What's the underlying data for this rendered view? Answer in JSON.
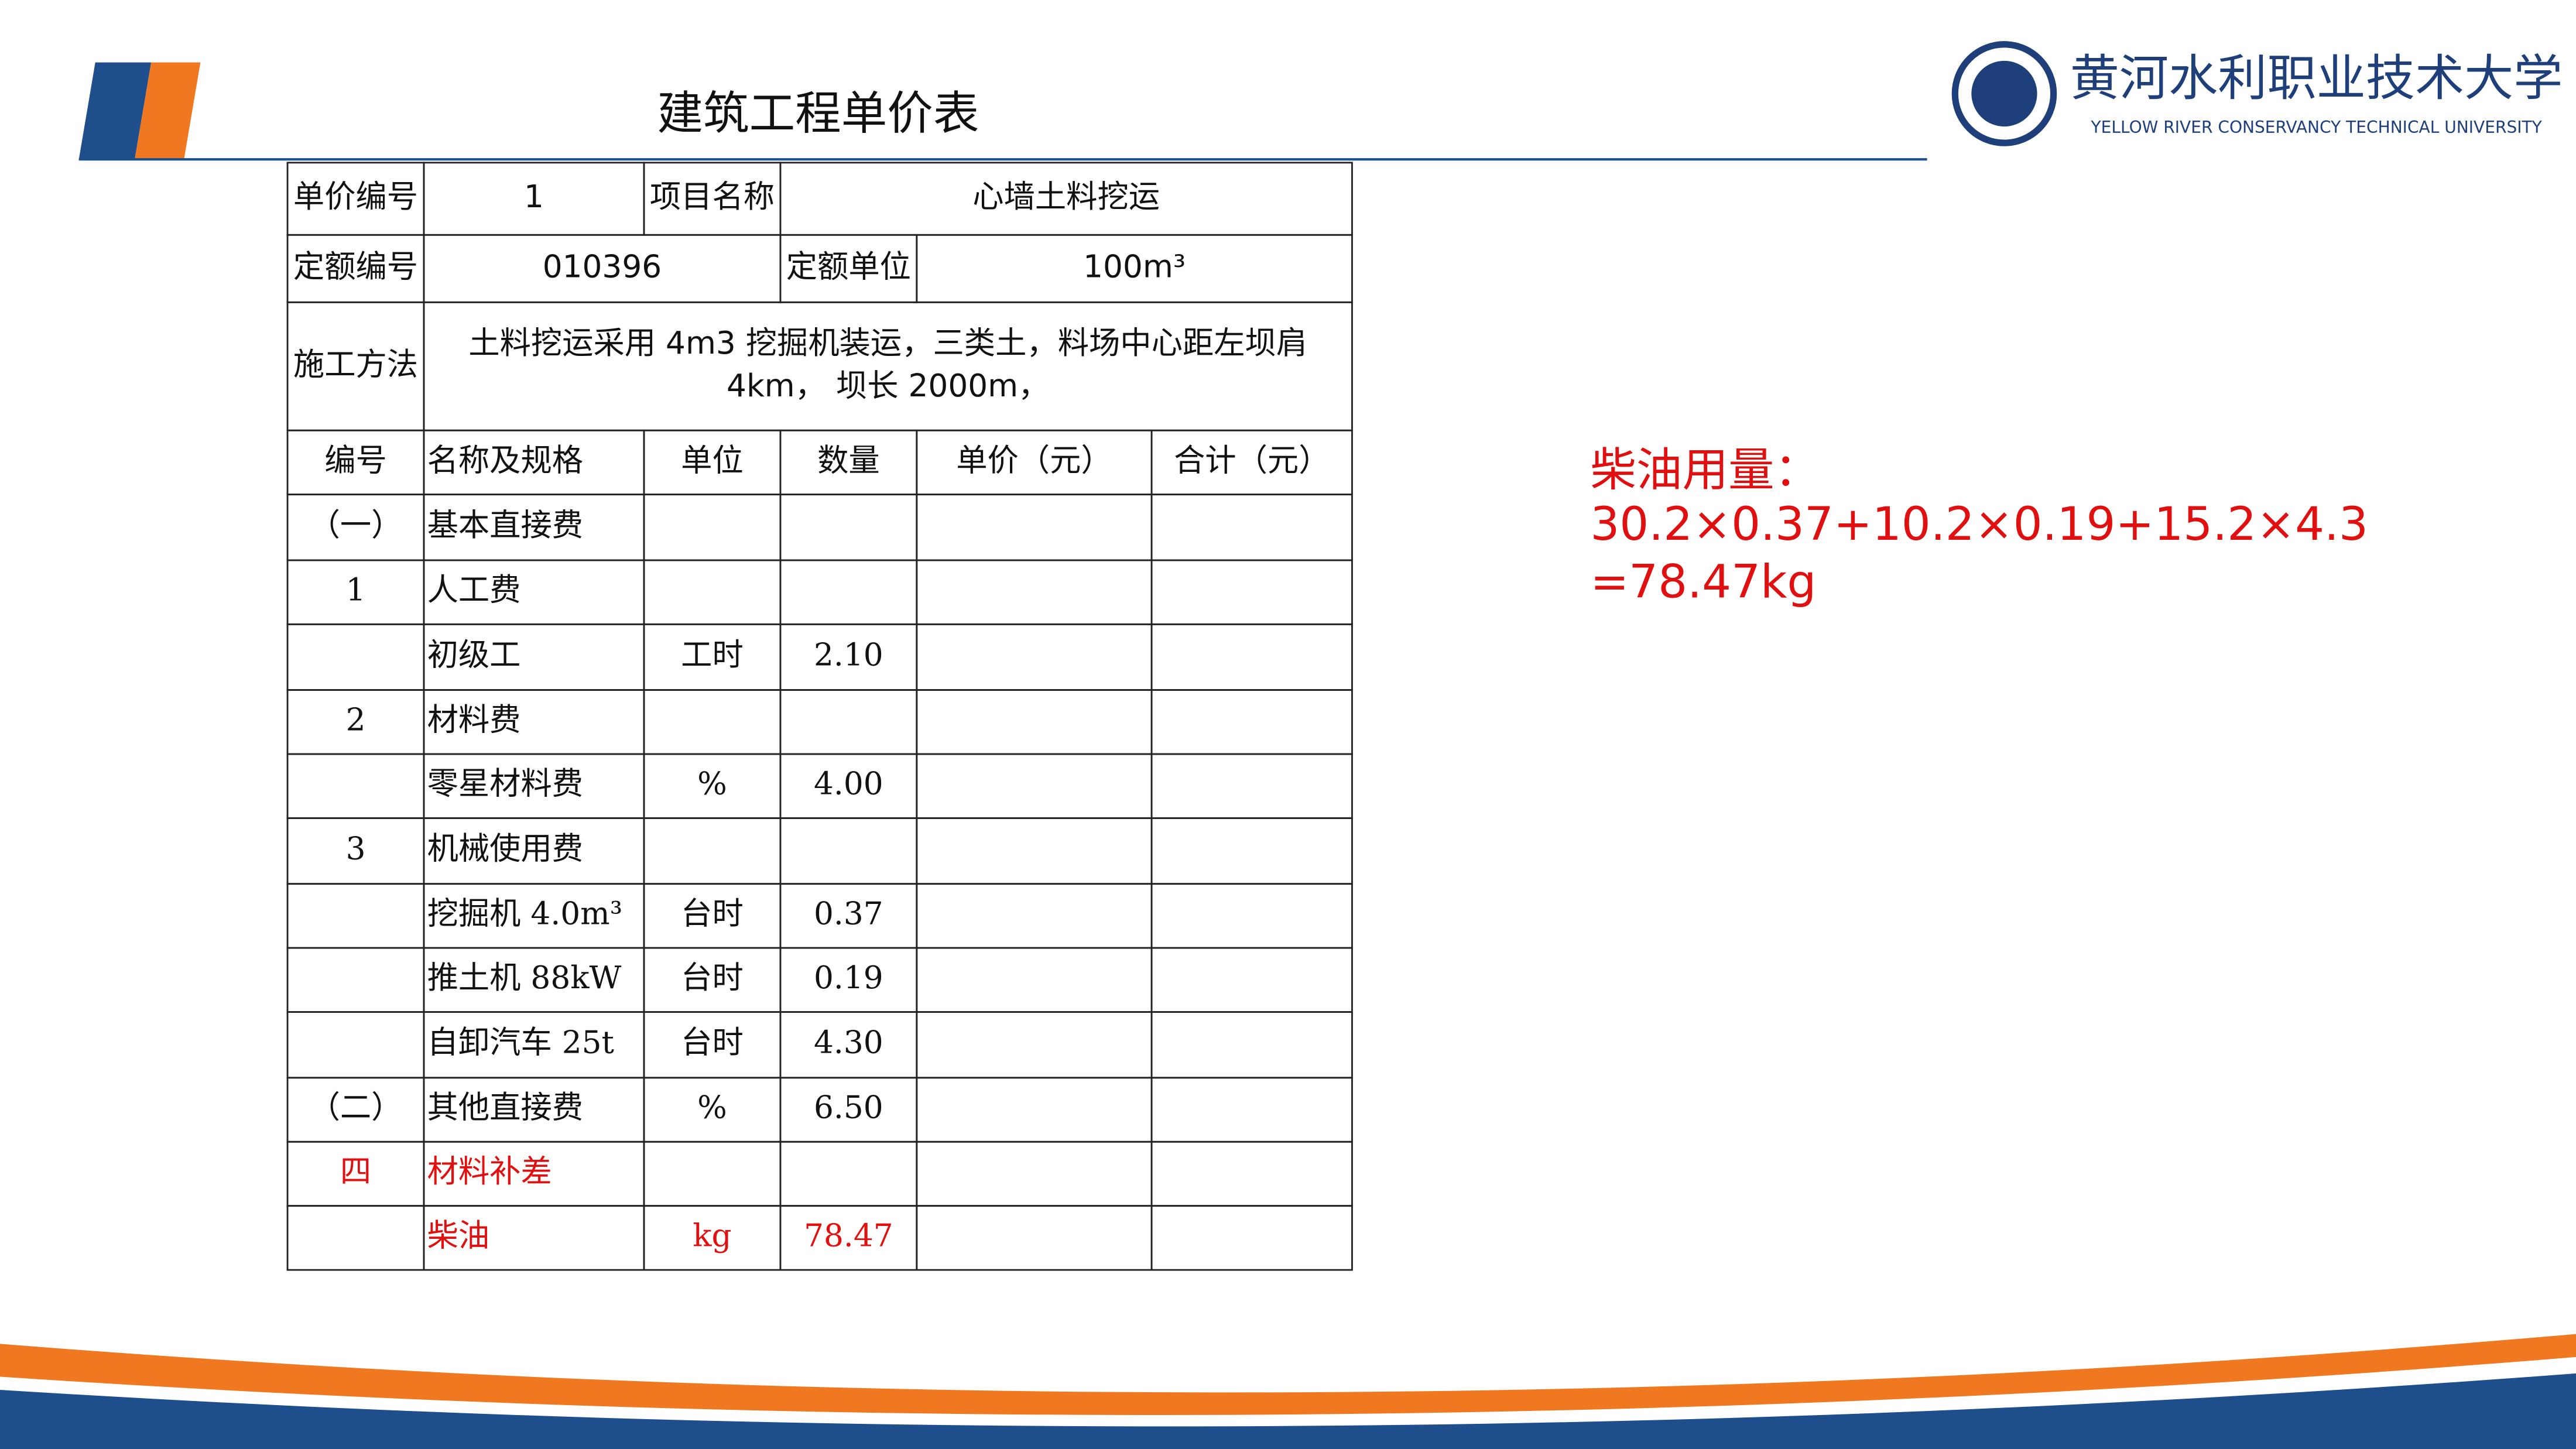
{
  "header": {
    "title": "建筑工程单价表",
    "logo_cn": "黄河水利职业技术大学",
    "logo_en": "YELLOW RIVER CONSERVANCY TECHNICAL UNIVERSITY"
  },
  "table": {
    "info_rows": [
      [
        "单价编号",
        "1",
        "项目名称",
        "心墙土料挖运"
      ],
      [
        "定额编号",
        "010396",
        "定额单位",
        "100m³"
      ],
      [
        "施工方法",
        [
          "土料挖运采用 4m3 挖掘机装运，三类土，料场中心距左坝肩",
          "4km， 坝长 2000m，"
        ]
      ]
    ],
    "columns": [
      "编号",
      "名称及规格",
      "单位",
      "数量",
      "单价（元）",
      "合计（元）"
    ],
    "rows": [
      {
        "no": "（一）",
        "name": "基本直接费"
      },
      {
        "no": "1",
        "name": "人工费"
      },
      {
        "name": "初级工",
        "unit": "工时",
        "qty": "2.10"
      },
      {
        "no": "2",
        "name": "材料费"
      },
      {
        "name": "零星材料费",
        "unit": "%",
        "qty": "4.00"
      },
      {
        "no": "3",
        "name": "机械使用费"
      },
      {
        "name": "挖掘机 4.0m³",
        "unit": "台时",
        "qty": "0.37"
      },
      {
        "name": "推土机 88kW",
        "unit": "台时",
        "qty": "0.19"
      },
      {
        "name": "自卸汽车 25t",
        "unit": "台时",
        "qty": "4.30"
      },
      {
        "no": "（二）",
        "name": "其他直接费",
        "unit": "%",
        "qty": "6.50"
      },
      {
        "no": "四",
        "name": "材料补差",
        "color": "#e01010"
      },
      {
        "name": "柴油",
        "unit": "kg",
        "qty": "78.47",
        "color": "#e01010"
      }
    ]
  },
  "note": {
    "lines": [
      "柴油用量：",
      "30.2×0.37+10.2×0.19+15.2×4.3",
      "=78.47kg"
    ],
    "color": "#e01010"
  }
}
